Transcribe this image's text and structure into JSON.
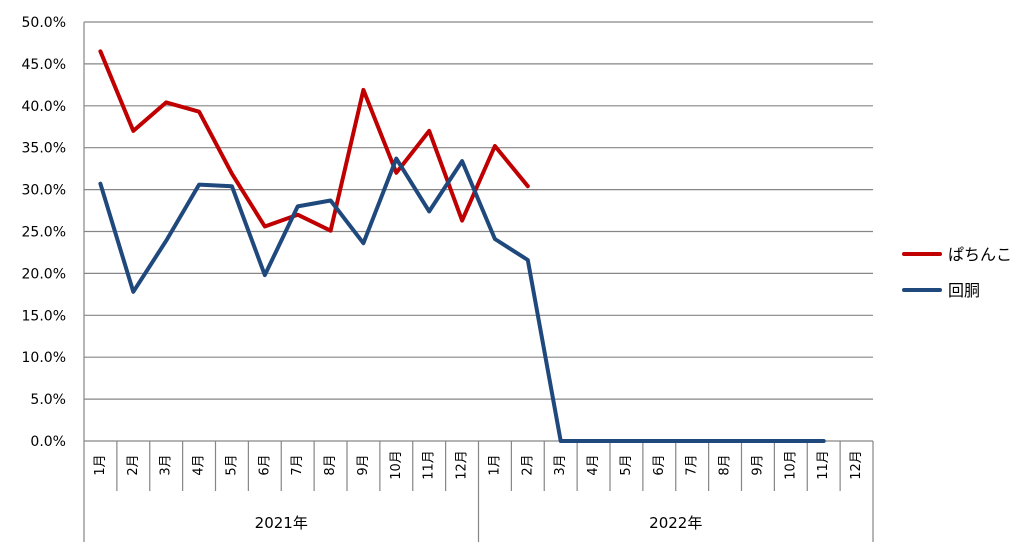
{
  "chart_data": {
    "type": "line",
    "title": "",
    "xlabel": "",
    "ylabel": "",
    "ylim": [
      0,
      0.5
    ],
    "y_ticks": [
      "0.0%",
      "5.0%",
      "10.0%",
      "15.0%",
      "20.0%",
      "25.0%",
      "30.0%",
      "35.0%",
      "40.0%",
      "45.0%",
      "50.0%"
    ],
    "categories": [
      "1月",
      "2月",
      "3月",
      "4月",
      "5月",
      "6月",
      "7月",
      "8月",
      "9月",
      "10月",
      "11月",
      "12月",
      "1月",
      "2月",
      "3月",
      "4月",
      "5月",
      "6月",
      "7月",
      "8月",
      "9月",
      "10月",
      "11月",
      "12月"
    ],
    "groups": [
      {
        "label": "2021年",
        "start": 0,
        "count": 12
      },
      {
        "label": "2022年",
        "start": 12,
        "count": 12
      }
    ],
    "grid": true,
    "legend_position": "right",
    "series": [
      {
        "name": "ぱちんこ",
        "color": "#c00000",
        "values": [
          0.465,
          0.37,
          0.404,
          0.393,
          0.319,
          0.256,
          0.27,
          0.251,
          0.419,
          0.32,
          0.37,
          0.263,
          0.352,
          0.304,
          null,
          null,
          null,
          null,
          null,
          null,
          null,
          null,
          null,
          null
        ]
      },
      {
        "name": "回胴",
        "color": "#1f497d",
        "values": [
          0.307,
          0.178,
          0.239,
          0.306,
          0.304,
          0.198,
          0.28,
          0.287,
          0.236,
          0.337,
          0.274,
          0.334,
          0.241,
          0.216,
          0.0,
          0.0,
          0.0,
          0.0,
          0.0,
          0.0,
          0.0,
          0.0,
          0.0,
          null
        ]
      }
    ]
  }
}
